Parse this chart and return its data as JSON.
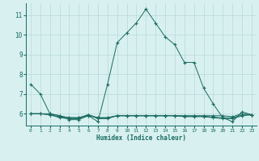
{
  "xlabel": "Humidex (Indice chaleur)",
  "x_values": [
    0,
    1,
    2,
    3,
    4,
    5,
    6,
    7,
    8,
    9,
    10,
    11,
    12,
    13,
    14,
    15,
    16,
    17,
    18,
    19,
    20,
    21,
    22,
    23
  ],
  "series": [
    [
      7.5,
      7.0,
      6.0,
      5.9,
      5.7,
      5.7,
      5.9,
      5.6,
      7.5,
      9.6,
      10.1,
      10.6,
      11.3,
      10.6,
      9.9,
      9.5,
      8.6,
      8.6,
      7.3,
      6.5,
      5.8,
      5.6,
      6.1,
      5.95
    ],
    [
      6.0,
      6.0,
      6.0,
      5.9,
      5.8,
      5.8,
      5.9,
      5.8,
      5.8,
      5.9,
      5.9,
      5.9,
      5.9,
      5.9,
      5.9,
      5.9,
      5.9,
      5.9,
      5.9,
      5.9,
      5.9,
      5.85,
      6.0,
      5.95
    ],
    [
      6.0,
      6.0,
      5.95,
      5.8,
      5.75,
      5.75,
      5.95,
      5.75,
      5.75,
      5.9,
      5.9,
      5.9,
      5.9,
      5.9,
      5.9,
      5.9,
      5.85,
      5.85,
      5.85,
      5.8,
      5.75,
      5.75,
      5.9,
      5.95
    ],
    [
      6.0,
      6.0,
      5.95,
      5.85,
      5.8,
      5.8,
      5.95,
      5.8,
      5.8,
      5.9,
      5.9,
      5.9,
      5.9,
      5.9,
      5.9,
      5.9,
      5.88,
      5.88,
      5.88,
      5.83,
      5.8,
      5.8,
      5.93,
      5.95
    ]
  ],
  "line_color": "#1a6b60",
  "marker": "+",
  "marker_size": 3,
  "background_color": "#d8f0f0",
  "grid_color": "#b8d8d8",
  "tick_color": "#1a6b60",
  "label_color": "#1a6b60",
  "ylim": [
    5.4,
    11.6
  ],
  "xlim": [
    -0.5,
    23.5
  ],
  "yticks": [
    6,
    7,
    8,
    9,
    10,
    11
  ],
  "xticks": [
    0,
    1,
    2,
    3,
    4,
    5,
    6,
    7,
    8,
    9,
    10,
    11,
    12,
    13,
    14,
    15,
    16,
    17,
    18,
    19,
    20,
    21,
    22,
    23
  ]
}
